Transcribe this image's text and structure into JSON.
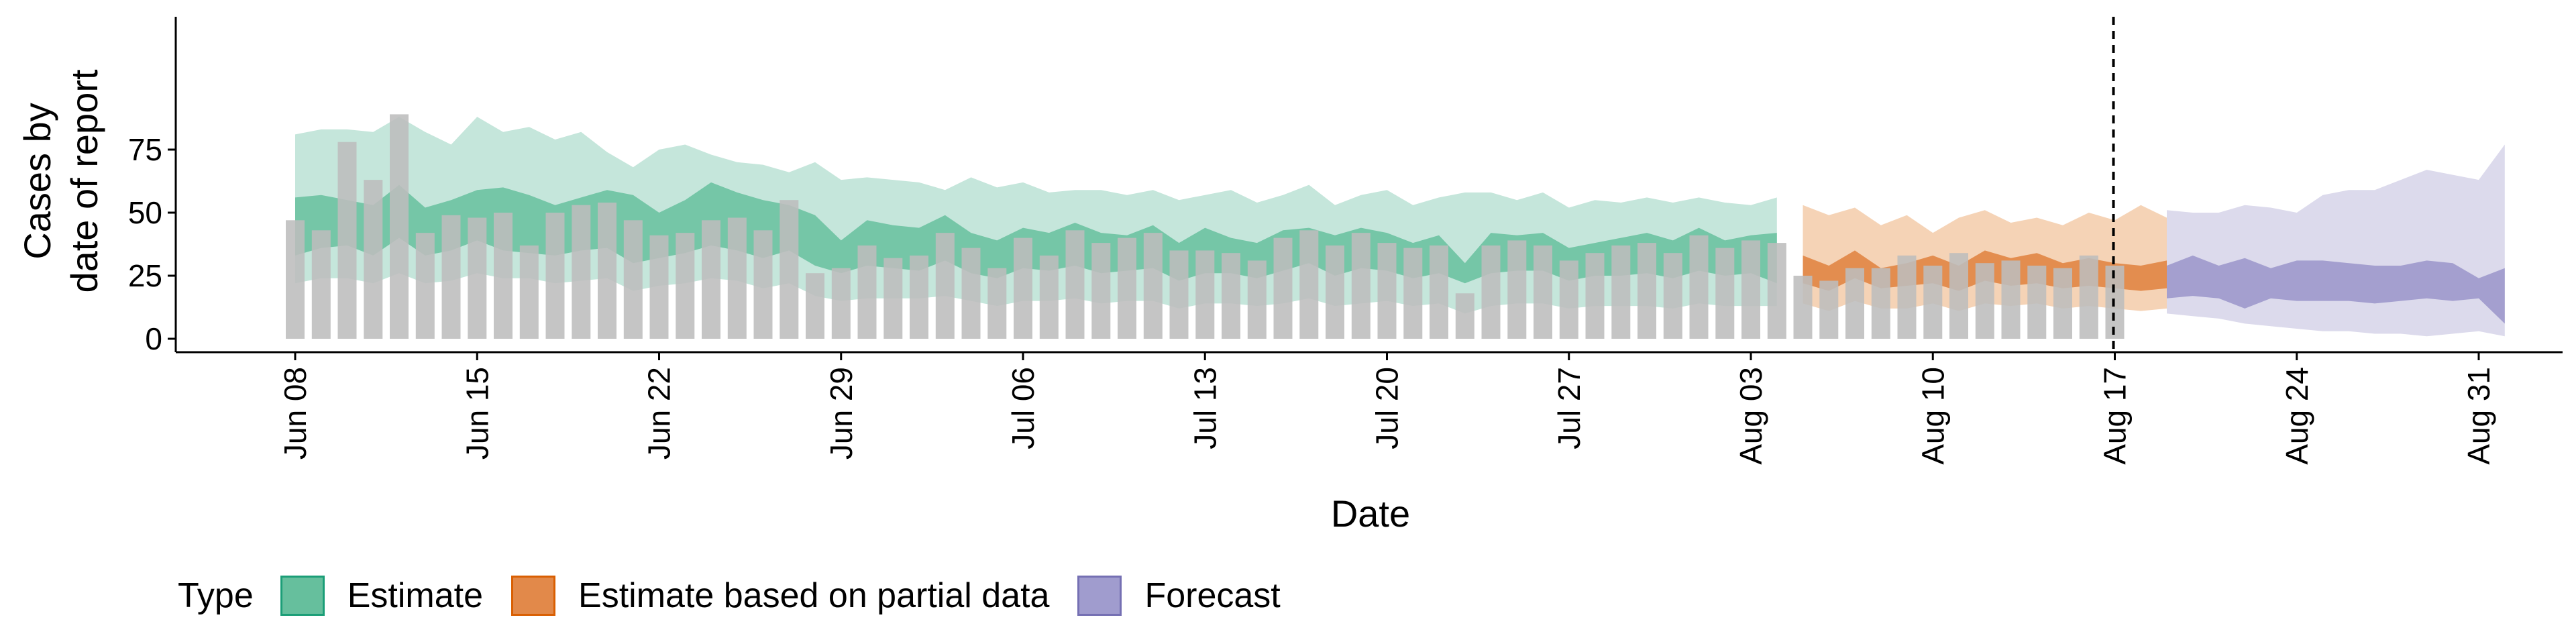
{
  "chart_data": {
    "type": "bar",
    "ylabel_line1": "Cases by",
    "ylabel_line2": "date of report",
    "xlabel": "Date",
    "ylim": [
      0,
      95
    ],
    "yticks": [
      0,
      25,
      50,
      75
    ],
    "start_date": "2020-06-08",
    "x_ticks": [
      "Jun 08",
      "Jun 15",
      "Jun 22",
      "Jun 29",
      "Jul 06",
      "Jul 13",
      "Jul 20",
      "Jul 27",
      "Aug 03",
      "Aug 10",
      "Aug 17",
      "Aug 24",
      "Aug 31"
    ],
    "vline_date": "Aug 17",
    "bar_color": "#bdbdbd",
    "reported_cases": [
      47,
      43,
      78,
      63,
      89,
      42,
      49,
      48,
      50,
      37,
      50,
      53,
      54,
      47,
      41,
      42,
      47,
      48,
      43,
      55,
      26,
      28,
      37,
      32,
      33,
      42,
      36,
      28,
      40,
      33,
      43,
      38,
      40,
      42,
      35,
      35,
      34,
      31,
      40,
      43,
      37,
      42,
      38,
      36,
      37,
      18,
      37,
      39,
      37,
      31,
      34,
      37,
      38,
      34,
      41,
      36,
      39,
      38,
      25,
      23,
      28,
      28,
      33,
      29,
      34,
      30,
      31,
      29,
      28,
      33,
      29
    ],
    "series": [
      {
        "name": "Estimate",
        "color": "#1b9e77",
        "fill_outer": "#c5e6db",
        "fill_inner": "#66bf9d",
        "fill_inner_opacity": 0.85,
        "dates_start_index": 0,
        "upper90": [
          81,
          83,
          83,
          82,
          88,
          82,
          77,
          88,
          82,
          84,
          79,
          82,
          74,
          68,
          75,
          77,
          73,
          70,
          69,
          66,
          70,
          63,
          64,
          63,
          62,
          59,
          64,
          60,
          62,
          58,
          59,
          59,
          57,
          59,
          55,
          57,
          59,
          54,
          57,
          61,
          53,
          57,
          59,
          53,
          56,
          58,
          58,
          55,
          58,
          52,
          55,
          54,
          56,
          54,
          56,
          54,
          53,
          56
        ],
        "upper50": [
          56,
          57,
          55,
          53,
          61,
          52,
          55,
          59,
          60,
          57,
          53,
          56,
          59,
          57,
          50,
          55,
          62,
          58,
          55,
          53,
          49,
          39,
          47,
          45,
          44,
          49,
          42,
          39,
          44,
          42,
          46,
          42,
          41,
          45,
          38,
          44,
          40,
          38,
          43,
          44,
          41,
          44,
          42,
          38,
          41,
          30,
          42,
          41,
          42,
          36,
          38,
          40,
          42,
          39,
          44,
          39,
          41,
          42
        ],
        "lower50": [
          33,
          36,
          37,
          33,
          40,
          33,
          35,
          39,
          35,
          34,
          33,
          35,
          36,
          30,
          32,
          34,
          37,
          35,
          32,
          35,
          29,
          26,
          29,
          28,
          27,
          31,
          26,
          24,
          28,
          27,
          29,
          26,
          27,
          28,
          23,
          26,
          26,
          24,
          27,
          30,
          25,
          28,
          27,
          24,
          26,
          22,
          26,
          27,
          27,
          23,
          25,
          25,
          26,
          24,
          27,
          25,
          26,
          22
        ],
        "lower90": [
          22,
          24,
          24,
          22,
          26,
          22,
          23,
          26,
          24,
          24,
          22,
          23,
          24,
          19,
          21,
          22,
          24,
          23,
          20,
          22,
          17,
          15,
          16,
          16,
          16,
          17,
          15,
          13,
          15,
          15,
          16,
          14,
          15,
          15,
          12,
          14,
          14,
          13,
          14,
          16,
          13,
          14,
          15,
          13,
          14,
          10,
          13,
          14,
          14,
          12,
          13,
          13,
          13,
          12,
          14,
          13,
          13,
          13
        ]
      },
      {
        "name": "Estimate based on partial data",
        "color": "#d95f02",
        "fill_outer": "#f5d3b6",
        "fill_inner": "#e2894a",
        "fill_inner_opacity": 0.95,
        "dates_start_index": 58,
        "upper90": [
          53,
          49,
          52,
          45,
          49,
          42,
          48,
          51,
          46,
          48,
          45,
          50,
          47,
          53,
          48,
          44,
          49
        ],
        "upper50": [
          33,
          29,
          35,
          28,
          30,
          33,
          29,
          35,
          32,
          34,
          30,
          32,
          30,
          29,
          31,
          26,
          32
        ],
        "lower50": [
          22,
          19,
          24,
          20,
          21,
          22,
          19,
          23,
          21,
          22,
          20,
          21,
          20,
          19,
          20,
          17,
          21
        ],
        "lower90": [
          14,
          11,
          15,
          12,
          12,
          14,
          11,
          14,
          13,
          14,
          12,
          13,
          12,
          11,
          12,
          10,
          13
        ]
      },
      {
        "name": "Forecast",
        "color": "#7570b3",
        "fill_outer": "#dcdaec",
        "fill_inner": "#a09cce",
        "fill_inner_opacity": 0.95,
        "dates_start_index": 72,
        "upper90": [
          51,
          50,
          50,
          53,
          52,
          50,
          57,
          59,
          59,
          63,
          67,
          65,
          63,
          77
        ],
        "upper50": [
          29,
          33,
          29,
          32,
          28,
          31,
          31,
          30,
          29,
          29,
          31,
          30,
          24,
          28
        ],
        "lower50": [
          16,
          17,
          16,
          12,
          16,
          15,
          15,
          15,
          14,
          15,
          16,
          15,
          16,
          6
        ],
        "lower90": [
          10,
          9,
          8,
          6,
          5,
          4,
          3,
          3,
          2,
          2,
          1,
          2,
          3,
          1
        ]
      }
    ],
    "legend_title": "Type",
    "legend_position": "bottom"
  }
}
